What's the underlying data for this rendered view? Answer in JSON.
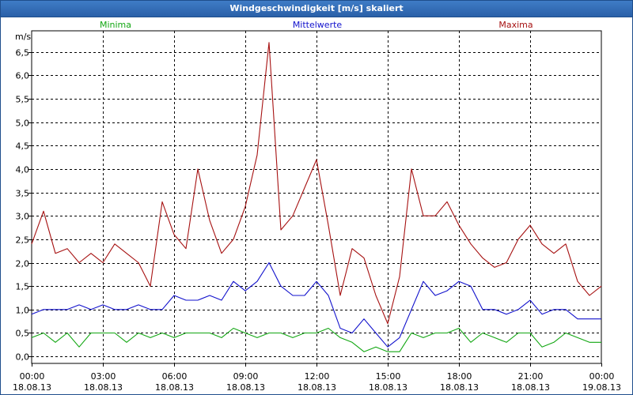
{
  "window": {
    "title": "Windgeschwindigkeit [m/s] skaliert"
  },
  "legend": [
    {
      "name": "Minima",
      "color": "#11a611"
    },
    {
      "name": "Mittelwerte",
      "color": "#1111cc"
    },
    {
      "name": "Maxima",
      "color": "#a61111"
    }
  ],
  "chart_data": {
    "type": "line",
    "title": "Windgeschwindigkeit [m/s] skaliert",
    "ylabel": "m/s",
    "xlabel": "",
    "ylim": [
      -0.15,
      6.95
    ],
    "xlim": [
      0,
      24
    ],
    "grid": true,
    "legend_position": "top",
    "y_ticks": [
      "0,0",
      "0,5",
      "1,0",
      "1,5",
      "2,0",
      "2,5",
      "3,0",
      "3,5",
      "4,0",
      "4,5",
      "5,0",
      "5,5",
      "6,0",
      "6,5"
    ],
    "x_ticks": [
      {
        "time": "00:00",
        "date": "18.08.13"
      },
      {
        "time": "03:00",
        "date": "18.08.13"
      },
      {
        "time": "06:00",
        "date": "18.08.13"
      },
      {
        "time": "09:00",
        "date": "18.08.13"
      },
      {
        "time": "12:00",
        "date": "18.08.13"
      },
      {
        "time": "15:00",
        "date": "18.08.13"
      },
      {
        "time": "18:00",
        "date": "18.08.13"
      },
      {
        "time": "21:00",
        "date": "18.08.13"
      },
      {
        "time": "00:00",
        "date": "19.08.13"
      }
    ],
    "x_hours": [
      0,
      0.5,
      1,
      1.5,
      2,
      2.5,
      3,
      3.5,
      4,
      4.5,
      5,
      5.5,
      6,
      6.5,
      7,
      7.5,
      8,
      8.5,
      9,
      9.5,
      10,
      10.5,
      11,
      11.5,
      12,
      12.5,
      13,
      13.5,
      14,
      14.5,
      15,
      15.5,
      16,
      16.5,
      17,
      17.5,
      18,
      18.5,
      19,
      19.5,
      20,
      20.5,
      21,
      21.5,
      22,
      22.5,
      23,
      23.5,
      24
    ],
    "series": [
      {
        "name": "Minima",
        "color": "#11a611",
        "values": [
          0.4,
          0.5,
          0.3,
          0.5,
          0.2,
          0.5,
          0.5,
          0.5,
          0.3,
          0.5,
          0.4,
          0.5,
          0.4,
          0.5,
          0.5,
          0.5,
          0.4,
          0.6,
          0.5,
          0.4,
          0.5,
          0.5,
          0.4,
          0.5,
          0.5,
          0.6,
          0.4,
          0.3,
          0.1,
          0.2,
          0.1,
          0.1,
          0.5,
          0.4,
          0.5,
          0.5,
          0.6,
          0.3,
          0.5,
          0.4,
          0.3,
          0.5,
          0.5,
          0.2,
          0.3,
          0.5,
          0.4,
          0.3,
          0.3
        ]
      },
      {
        "name": "Mittelwerte",
        "color": "#1111cc",
        "values": [
          0.9,
          1.0,
          1.0,
          1.0,
          1.1,
          1.0,
          1.1,
          1.0,
          1.0,
          1.1,
          1.0,
          1.0,
          1.3,
          1.2,
          1.2,
          1.3,
          1.2,
          1.6,
          1.4,
          1.6,
          2.0,
          1.5,
          1.3,
          1.3,
          1.6,
          1.3,
          0.6,
          0.5,
          0.8,
          0.5,
          0.2,
          0.4,
          1.0,
          1.6,
          1.3,
          1.4,
          1.6,
          1.5,
          1.0,
          1.0,
          0.9,
          1.0,
          1.2,
          0.9,
          1.0,
          1.0,
          0.8,
          0.8,
          0.8
        ]
      },
      {
        "name": "Maxima",
        "color": "#a61111",
        "values": [
          2.4,
          3.1,
          2.2,
          2.3,
          2.0,
          2.2,
          2.0,
          2.4,
          2.2,
          2.0,
          1.5,
          3.3,
          2.6,
          2.3,
          4.0,
          2.9,
          2.2,
          2.5,
          3.2,
          4.3,
          6.7,
          2.7,
          3.0,
          3.6,
          4.2,
          2.8,
          1.3,
          2.3,
          2.1,
          1.3,
          0.7,
          1.7,
          4.0,
          3.0,
          3.0,
          3.3,
          2.8,
          2.4,
          2.1,
          1.9,
          2.0,
          2.5,
          2.8,
          2.4,
          2.2,
          2.4,
          1.6,
          1.3,
          1.5
        ]
      }
    ]
  }
}
